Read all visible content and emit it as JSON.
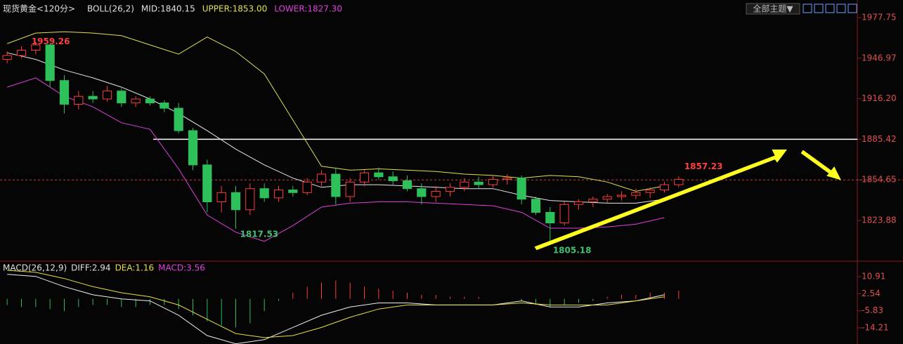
{
  "chart_data": {
    "type": "candlestick",
    "title": "现货黄金<120分>",
    "indicator": [
      "BOLL(26,2)",
      "MID:1840.15",
      "UPPER:1853.00",
      "LOWER:1827.30"
    ],
    "up_color": "#ff3c3c",
    "down_color": "#2ec05a",
    "xlim": [
      -0.5,
      59.5
    ],
    "ylim": [
      1793,
      1991.06
    ],
    "yticks": [
      1977.75,
      1946.97,
      {
        "value": 1916.2,
        "label": "1916.20"
      },
      1885.42,
      1854.65,
      1823.88
    ],
    "ohlc": [
      [
        1946,
        1952,
        1943,
        1949
      ],
      [
        1949,
        1956,
        1947,
        1953
      ],
      [
        1953,
        1959.26,
        1950,
        1957
      ],
      [
        1957,
        1958,
        1925,
        1930
      ],
      [
        1930,
        1934,
        1905,
        1912
      ],
      [
        1912,
        1922,
        1908,
        1918
      ],
      [
        1918,
        1922,
        1913,
        1916
      ],
      [
        1916,
        1926,
        1914,
        1922
      ],
      [
        1922,
        1924,
        1910,
        1913
      ],
      [
        1913,
        1918,
        1910,
        1916
      ],
      [
        1916,
        1918,
        1911,
        1913
      ],
      [
        1913,
        1915,
        1906,
        1909
      ],
      [
        1909,
        1913,
        1890,
        1892
      ],
      [
        1892,
        1894,
        1862,
        1866
      ],
      [
        1866,
        1870,
        1830,
        1838
      ],
      [
        1838,
        1850,
        1830,
        1845
      ],
      [
        1845,
        1850,
        1817.53,
        1832
      ],
      [
        1832,
        1852,
        1828,
        1848
      ],
      [
        1848,
        1852,
        1838,
        1841
      ],
      [
        1841,
        1850,
        1838,
        1847
      ],
      [
        1847,
        1850,
        1842,
        1845
      ],
      [
        1845,
        1856,
        1843,
        1853
      ],
      [
        1853,
        1862,
        1850,
        1859
      ],
      [
        1859,
        1864,
        1836,
        1842
      ],
      [
        1842,
        1856,
        1838,
        1853
      ],
      [
        1853,
        1862,
        1850,
        1860
      ],
      [
        1860,
        1864,
        1855,
        1857
      ],
      [
        1857,
        1861,
        1851,
        1854
      ],
      [
        1854,
        1858,
        1846,
        1848
      ],
      [
        1848,
        1852,
        1836,
        1842
      ],
      [
        1842,
        1850,
        1838,
        1846
      ],
      [
        1846,
        1852,
        1842,
        1849
      ],
      [
        1849,
        1856,
        1846,
        1853
      ],
      [
        1853,
        1857,
        1848,
        1851
      ],
      [
        1851,
        1858,
        1849,
        1855
      ],
      [
        1855,
        1859,
        1851,
        1856
      ],
      [
        1856,
        1858,
        1836,
        1840
      ],
      [
        1840,
        1842,
        1828,
        1830
      ],
      [
        1830,
        1834,
        1805.18,
        1822
      ],
      [
        1822,
        1838,
        1820,
        1836
      ],
      [
        1836,
        1840,
        1832,
        1838
      ],
      [
        1838,
        1842,
        1834,
        1840
      ],
      [
        1840,
        1844,
        1837,
        1842
      ],
      [
        1842,
        1846,
        1839,
        1843
      ],
      [
        1843,
        1848,
        1840,
        1845
      ],
      [
        1845,
        1849,
        1841,
        1847
      ],
      [
        1847,
        1853,
        1845,
        1851
      ],
      [
        1851,
        1857.23,
        1849,
        1855
      ]
    ],
    "band_x": [
      0,
      2,
      4,
      6,
      8,
      10,
      12,
      14,
      16,
      18,
      20,
      22,
      24,
      26,
      28,
      30,
      32,
      34,
      36,
      38,
      40,
      42,
      44,
      46
    ],
    "bands": [
      {
        "color": "#e0e050",
        "values": [
          1958,
          1966,
          1967,
          1966,
          1964,
          1957,
          1950,
          1963,
          1952,
          1935,
          1900,
          1865,
          1862,
          1863,
          1862,
          1861,
          1859,
          1858,
          1856,
          1858,
          1857,
          1853,
          1846,
          1850
        ]
      },
      {
        "color": "#e8e8e8",
        "values": [
          1951,
          1946,
          1938,
          1932,
          1925,
          1916,
          1905,
          1892,
          1878,
          1866,
          1856,
          1849,
          1851,
          1851,
          1850,
          1849,
          1848,
          1848,
          1843,
          1839,
          1838,
          1837,
          1837,
          1840
        ]
      },
      {
        "color": "#e040e0",
        "values": [
          1925,
          1932,
          1918,
          1910,
          1898,
          1893,
          1863,
          1828,
          1815,
          1808,
          1820,
          1834,
          1837,
          1838,
          1838,
          1837,
          1836,
          1835,
          1830,
          1818,
          1818,
          1819,
          1821,
          1826
        ]
      }
    ],
    "macd": {
      "indicator": [
        "MACD(26,12,9)",
        "DIFF:2.94",
        "DEA:1.16",
        "MACD:3.56"
      ],
      "ylim": [
        -22.12,
        18.14
      ],
      "yticks": [
        10.91,
        2.54,
        -5.83,
        -14.21
      ],
      "histogram": [
        -3,
        -4,
        -4,
        -5,
        -6,
        -4,
        -3,
        -3,
        -4,
        -4,
        -3,
        -3,
        -5,
        -8,
        -11,
        -13,
        -14,
        -12,
        -6,
        -1,
        3,
        6,
        8,
        9,
        8,
        6,
        5,
        4,
        3,
        2,
        2,
        1,
        1,
        1,
        0,
        0,
        -1,
        -3,
        -4,
        -3,
        -2,
        -1,
        1,
        2,
        2,
        3,
        3,
        4
      ],
      "series": [
        {
          "color": "#f0f0f0",
          "values": [
            12,
            11,
            6,
            2,
            0,
            -1,
            -8,
            -18,
            -22,
            -20,
            -14,
            -8,
            -4,
            -2,
            -2,
            -3,
            -3,
            -3,
            -1,
            -4,
            -4,
            -2,
            -1,
            2
          ]
        },
        {
          "color": "#e8e040",
          "values": [
            14,
            13,
            10,
            6,
            3,
            1,
            -3,
            -10,
            -17,
            -19,
            -18,
            -14,
            -9,
            -5,
            -3,
            -3,
            -3,
            -3,
            -2,
            -3,
            -3,
            -3,
            -1,
            1
          ]
        }
      ]
    }
  },
  "toolbar": {
    "theme": "全部主题▼"
  }
}
